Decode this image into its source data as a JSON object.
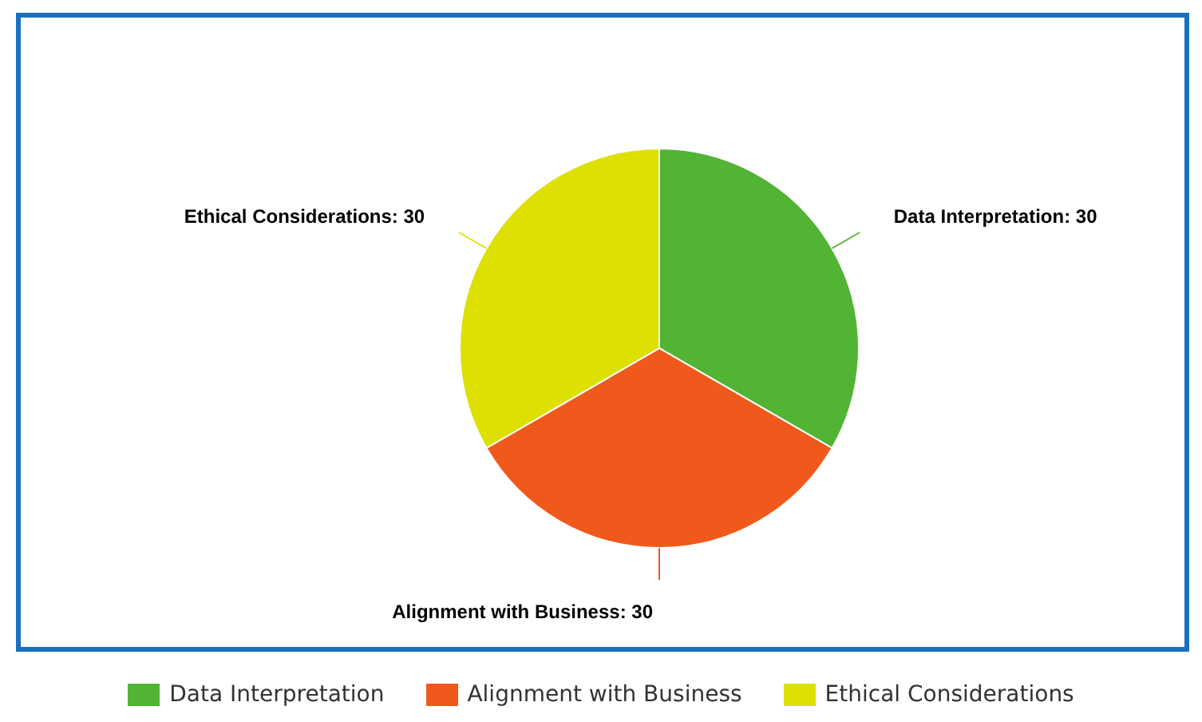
{
  "chart_data": {
    "type": "pie",
    "categories": [
      "Data Interpretation",
      "Alignment with Business",
      "Ethical Considerations"
    ],
    "values": [
      30,
      30,
      30
    ],
    "colors": [
      "#52b435",
      "#f0591c",
      "#dde000"
    ],
    "value_labels": [
      "Data Interpretation: 30",
      "Alignment with Business: 30",
      "Ethical Considerations: 30"
    ],
    "legend": "bottom"
  }
}
